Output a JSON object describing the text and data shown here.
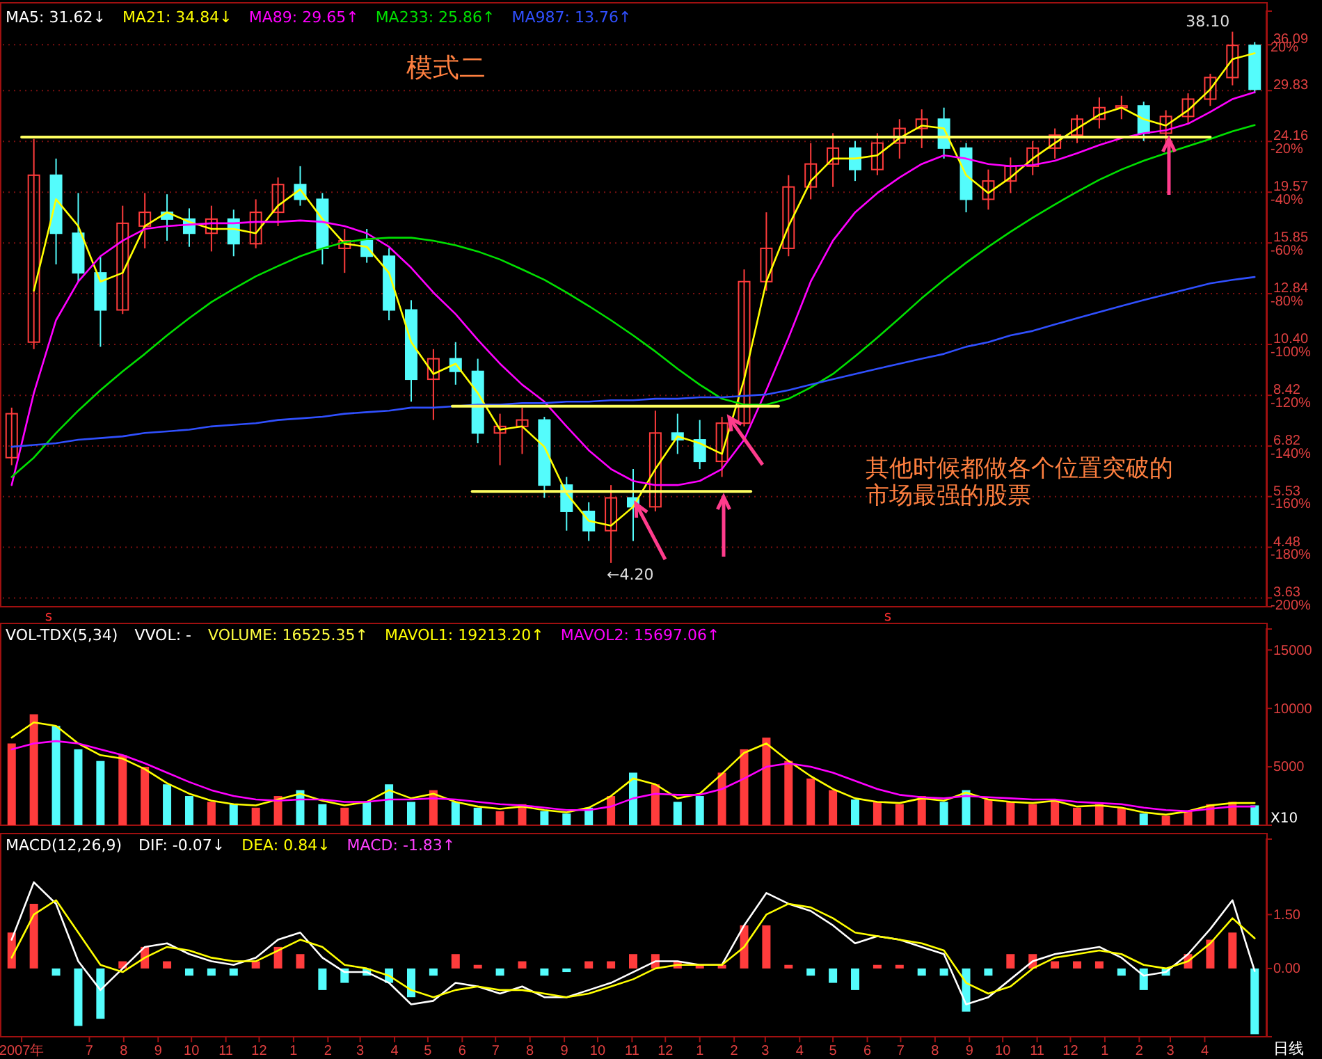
{
  "chart_data": [
    {
      "type": "candlestick",
      "x": [
        "2007-04-22",
        "2007-05-12",
        "2007-06-01",
        "2007-06-21",
        "2007-07-11",
        "2007-07-31",
        "2007-08-20",
        "2007-09-09",
        "2007-09-29",
        "2007-10-19",
        "2007-11-08",
        "2007-11-28",
        "2007-12-18",
        "2008-01-07",
        "2008-01-27",
        "2008-02-16",
        "2008-03-07",
        "2008-03-27",
        "2008-04-16",
        "2008-05-06",
        "2008-05-26",
        "2008-06-15",
        "2008-07-05",
        "2008-07-25",
        "2008-08-14",
        "2008-09-03",
        "2008-09-23",
        "2008-10-13",
        "2008-11-02",
        "2008-11-22",
        "2008-12-12",
        "2009-01-01",
        "2009-01-21",
        "2009-02-10",
        "2009-03-02",
        "2009-03-22",
        "2009-04-11",
        "2009-05-01",
        "2009-05-21",
        "2009-06-10",
        "2009-06-30",
        "2009-07-20",
        "2009-08-09",
        "2009-08-29",
        "2009-09-18",
        "2009-10-08",
        "2009-10-28",
        "2009-11-17",
        "2009-12-07",
        "2009-12-27",
        "2010-01-16",
        "2010-02-05",
        "2010-02-25",
        "2010-03-17",
        "2010-04-06",
        "2010-04-26",
        "2010-05-16"
      ],
      "ohlc": [
        [
          6.5,
          8.0,
          6.3,
          7.8
        ],
        [
          10.5,
          24.4,
          10.2,
          21.0
        ],
        [
          21,
          22.5,
          14.5,
          16.5
        ],
        [
          16.5,
          19.5,
          13.5,
          14.0
        ],
        [
          14,
          15,
          10.3,
          12.0
        ],
        [
          12,
          18.5,
          11.8,
          17.2
        ],
        [
          17,
          19.5,
          15.5,
          18.0
        ],
        [
          18,
          19.4,
          16,
          17.5
        ],
        [
          17.5,
          18.3,
          15.6,
          16.5
        ],
        [
          16.5,
          18.5,
          15.3,
          17.5
        ],
        [
          17.5,
          18.2,
          15,
          15.8
        ],
        [
          15.8,
          19,
          15.5,
          18.0
        ],
        [
          18,
          20.8,
          17,
          20.2
        ],
        [
          20.2,
          21.8,
          18.5,
          19.0
        ],
        [
          19,
          19.5,
          14.5,
          15.5
        ],
        [
          15.5,
          16.8,
          14.0,
          16.0
        ],
        [
          16,
          16.8,
          14.6,
          15.0
        ],
        [
          15,
          15.5,
          11.5,
          12.0
        ],
        [
          12,
          12.5,
          8.2,
          9.0
        ],
        [
          9,
          10.2,
          7.6,
          9.8
        ],
        [
          9.8,
          10.5,
          8.8,
          9.3
        ],
        [
          9.3,
          9.8,
          6.9,
          7.2
        ],
        [
          7.2,
          7.8,
          6.3,
          7.4
        ],
        [
          7.4,
          8.0,
          6.6,
          7.6
        ],
        [
          7.6,
          7.7,
          5.5,
          5.8
        ],
        [
          5.8,
          6.0,
          4.8,
          5.2
        ],
        [
          5.2,
          5.4,
          4.6,
          4.8
        ],
        [
          4.8,
          5.8,
          4.2,
          5.5
        ],
        [
          5.5,
          6.2,
          4.6,
          5.3
        ],
        [
          5.3,
          7.9,
          5.2,
          7.2
        ],
        [
          7.2,
          7.8,
          6.6,
          7.0
        ],
        [
          7.0,
          7.6,
          6.2,
          6.4
        ],
        [
          6.4,
          7.7,
          6.0,
          7.5
        ],
        [
          7.5,
          14.2,
          7.4,
          13.5
        ],
        [
          13.5,
          18.0,
          13.0,
          15.5
        ],
        [
          15.5,
          21,
          15,
          20.0
        ],
        [
          20,
          24,
          19,
          22.0
        ],
        [
          22,
          25,
          20,
          23.5
        ],
        [
          23.5,
          24.2,
          20.5,
          21.5
        ],
        [
          21.5,
          25,
          21,
          24.0
        ],
        [
          24,
          26.5,
          22.5,
          25.5
        ],
        [
          25.5,
          27.6,
          23.5,
          26.5
        ],
        [
          26.5,
          27.8,
          22.5,
          23.5
        ],
        [
          23.5,
          24,
          18.0,
          19.0
        ],
        [
          19,
          21.5,
          18.2,
          20.5
        ],
        [
          20.5,
          22.6,
          19.5,
          21.8
        ],
        [
          21.8,
          24.2,
          21,
          23.5
        ],
        [
          23.5,
          25.5,
          22.5,
          24.8
        ],
        [
          24.8,
          27,
          24,
          26.5
        ],
        [
          26.5,
          29,
          25.5,
          27.8
        ],
        [
          27.8,
          29.2,
          26.5,
          28.0
        ],
        [
          28,
          28.5,
          24.2,
          25.0
        ],
        [
          25,
          27.5,
          24,
          26.8
        ],
        [
          26.8,
          29.5,
          26,
          28.8
        ],
        [
          28.8,
          32,
          28,
          31.5
        ],
        [
          31.5,
          38.1,
          30.5,
          36.0
        ],
        [
          36,
          36.5,
          29.5,
          30.0
        ]
      ],
      "colors": [
        "#ff3c3c",
        "#ff3c3c",
        "#54fcfc",
        "#54fcfc",
        "#54fcfc",
        "#ff3c3c",
        "#ff3c3c",
        "#54fcfc",
        "#54fcfc",
        "#ff3c3c",
        "#54fcfc",
        "#ff3c3c",
        "#ff3c3c",
        "#54fcfc",
        "#54fcfc",
        "#ff3c3c",
        "#54fcfc",
        "#54fcfc",
        "#54fcfc",
        "#ff3c3c",
        "#54fcfc",
        "#54fcfc",
        "#ff3c3c",
        "#ff3c3c",
        "#54fcfc",
        "#54fcfc",
        "#54fcfc",
        "#ff3c3c",
        "#54fcfc",
        "#ff3c3c",
        "#54fcfc",
        "#54fcfc",
        "#ff3c3c",
        "#ff3c3c",
        "#ff3c3c",
        "#ff3c3c",
        "#ff3c3c",
        "#ff3c3c",
        "#54fcfc",
        "#ff3c3c",
        "#ff3c3c",
        "#ff3c3c",
        "#54fcfc",
        "#54fcfc",
        "#ff3c3c",
        "#ff3c3c",
        "#ff3c3c",
        "#ff3c3c",
        "#ff3c3c",
        "#ff3c3c",
        "#ff3c3c",
        "#54fcfc",
        "#ff3c3c",
        "#ff3c3c",
        "#ff3c3c",
        "#ff3c3c",
        "#54fcfc"
      ],
      "series": [
        {
          "name": "MA21: 34.84↓",
          "type": "line",
          "color": "#ffff00",
          "values": [
            null,
            13,
            19,
            17,
            13.5,
            14,
            17,
            18,
            17.3,
            16.8,
            16.8,
            16.5,
            18.5,
            19.8,
            17.5,
            15.8,
            15.6,
            14,
            10.5,
            9.2,
            9.6,
            8.5,
            7.3,
            7.4,
            6.8,
            5.6,
            5.0,
            4.9,
            5.3,
            6.2,
            7.1,
            6.9,
            6.6,
            9.0,
            13.5,
            17.0,
            20.5,
            22.5,
            22.5,
            22.8,
            24.5,
            25.8,
            25.5,
            21.0,
            19.5,
            20.8,
            22.5,
            24.0,
            25.5,
            27.0,
            27.8,
            26.5,
            25.8,
            27.5,
            30.0,
            34.0,
            34.84
          ]
        },
        {
          "name": "MA89: 29.65↑",
          "type": "line",
          "color": "#ff00ff",
          "values": [
            5.8,
            8.5,
            11.5,
            13.5,
            15.0,
            16.0,
            16.8,
            17.0,
            17.1,
            17.2,
            17.2,
            17.3,
            17.3,
            17.4,
            17.3,
            17.0,
            16.5,
            15.6,
            14.3,
            12.9,
            11.8,
            10.6,
            9.6,
            8.8,
            8.2,
            7.4,
            6.7,
            6.2,
            5.9,
            5.8,
            5.8,
            5.9,
            6.2,
            7.0,
            8.6,
            10.7,
            13.5,
            16.0,
            18.0,
            19.5,
            20.8,
            22.0,
            22.8,
            22.5,
            22.0,
            21.8,
            21.9,
            22.3,
            23.0,
            23.8,
            24.5,
            25.0,
            25.3,
            26.0,
            27.3,
            28.8,
            29.65
          ]
        },
        {
          "name": "MA233: 25.86↑",
          "type": "line",
          "color": "#00e000",
          "values": [
            6.0,
            6.5,
            7.2,
            7.9,
            8.6,
            9.3,
            10.0,
            10.8,
            11.6,
            12.4,
            13.1,
            13.8,
            14.4,
            15.0,
            15.5,
            15.9,
            16.1,
            16.2,
            16.2,
            16.0,
            15.7,
            15.3,
            14.8,
            14.2,
            13.6,
            12.9,
            12.2,
            11.5,
            10.8,
            10.1,
            9.4,
            8.8,
            8.3,
            8.1,
            8.1,
            8.3,
            8.7,
            9.2,
            9.9,
            10.7,
            11.6,
            12.6,
            13.6,
            14.6,
            15.6,
            16.6,
            17.6,
            18.6,
            19.6,
            20.6,
            21.5,
            22.3,
            23.0,
            23.7,
            24.4,
            25.2,
            25.86
          ]
        },
        {
          "name": "MA987: 13.76↑",
          "type": "line",
          "color": "#3050ff",
          "values": [
            6.8,
            6.85,
            6.9,
            7.0,
            7.05,
            7.1,
            7.2,
            7.25,
            7.3,
            7.4,
            7.45,
            7.5,
            7.6,
            7.65,
            7.7,
            7.8,
            7.85,
            7.9,
            8.0,
            8.0,
            8.05,
            8.1,
            8.1,
            8.15,
            8.15,
            8.2,
            8.2,
            8.25,
            8.25,
            8.3,
            8.3,
            8.35,
            8.35,
            8.4,
            8.45,
            8.6,
            8.8,
            9.0,
            9.2,
            9.4,
            9.6,
            9.8,
            10.0,
            10.3,
            10.5,
            10.8,
            11.0,
            11.3,
            11.6,
            11.9,
            12.2,
            12.5,
            12.8,
            13.1,
            13.4,
            13.6,
            13.76
          ]
        },
        {
          "type": "line",
          "color": "#ffff60",
          "x": [
            "2007-05-01",
            "2010-04-06"
          ],
          "values": [
            24.6,
            24.6
          ]
        },
        {
          "type": "line",
          "color": "#ffff60",
          "x": [
            "2008-05-23",
            "2009-03-13"
          ],
          "values": [
            8.05,
            8.05
          ]
        },
        {
          "type": "line",
          "color": "#ffff60",
          "x": [
            "2008-06-10",
            "2009-02-16"
          ],
          "values": [
            5.65,
            5.65
          ]
        }
      ],
      "log": true,
      "ylim": [
        3.5,
        41.5
      ],
      "yticks": [
        36.09,
        29.83,
        24.16,
        19.57,
        15.85,
        12.84,
        {
          "value": 10.4,
          "label": "10.40"
        },
        8.42,
        6.82,
        5.53,
        4.48,
        3.63
      ],
      "y2lim": [
        -203.5,
        31.3
      ],
      "y2ticks": [
        {
          "value": 20,
          "label": "20%"
        },
        {
          "value": -20,
          "label": "-20%"
        },
        {
          "value": -40,
          "label": "-40%"
        },
        {
          "value": -60,
          "label": "-60%"
        },
        {
          "value": -80,
          "label": "-80%"
        },
        {
          "value": -100,
          "label": "-100%"
        },
        {
          "value": -120,
          "label": "-120%"
        },
        {
          "value": -140,
          "label": "-140%"
        },
        {
          "value": -160,
          "label": "-160%"
        },
        {
          "value": -180,
          "label": "-180%"
        },
        {
          "value": -200,
          "label": "-200%"
        }
      ],
      "xlim": [
        "2007-04-14",
        "2010-05-24"
      ],
      "tick_labels": "y",
      "grid": "y",
      "legend": "top left",
      "annotations": [
        "MA5: 31.62↓",
        "模式二",
        "其他时候都做各个位置突破的市场最强的股票",
        {
          "text": "←4.20",
          "x": "2008-10-13",
          "y": 4.2
        },
        {
          "text": "38.10",
          "x": "2010-04-26",
          "y": 38.1
        },
        "s",
        "s"
      ]
    },
    {
      "type": "bar",
      "x": [
        "2007-04-22",
        "2007-05-12",
        "2007-06-01",
        "2007-06-21",
        "2007-07-11",
        "2007-07-31",
        "2007-08-20",
        "2007-09-09",
        "2007-09-29",
        "2007-10-19",
        "2007-11-08",
        "2007-11-28",
        "2007-12-18",
        "2008-01-07",
        "2008-01-27",
        "2008-02-16",
        "2008-03-07",
        "2008-03-27",
        "2008-04-16",
        "2008-05-06",
        "2008-05-26",
        "2008-06-15",
        "2008-07-05",
        "2008-07-25",
        "2008-08-14",
        "2008-09-03",
        "2008-09-23",
        "2008-10-13",
        "2008-11-02",
        "2008-11-22",
        "2008-12-12",
        "2009-01-01",
        "2009-01-21",
        "2009-02-10",
        "2009-03-02",
        "2009-03-22",
        "2009-04-11",
        "2009-05-01",
        "2009-05-21",
        "2009-06-10",
        "2009-06-30",
        "2009-07-20",
        "2009-08-09",
        "2009-08-29",
        "2009-09-18",
        "2009-10-08",
        "2009-10-28",
        "2009-11-17",
        "2009-12-07",
        "2009-12-27",
        "2010-01-16",
        "2010-02-05",
        "2010-02-25",
        "2010-03-17",
        "2010-04-06",
        "2010-04-26",
        "2010-05-16"
      ],
      "series": [
        {
          "type": "bar",
          "colors": [
            "#ff3c3c",
            "#ff3c3c",
            "#54fcfc",
            "#54fcfc",
            "#54fcfc",
            "#ff3c3c",
            "#ff3c3c",
            "#54fcfc",
            "#54fcfc",
            "#ff3c3c",
            "#54fcfc",
            "#ff3c3c",
            "#ff3c3c",
            "#54fcfc",
            "#54fcfc",
            "#ff3c3c",
            "#54fcfc",
            "#54fcfc",
            "#54fcfc",
            "#ff3c3c",
            "#54fcfc",
            "#54fcfc",
            "#ff3c3c",
            "#ff3c3c",
            "#54fcfc",
            "#54fcfc",
            "#54fcfc",
            "#ff3c3c",
            "#54fcfc",
            "#ff3c3c",
            "#54fcfc",
            "#54fcfc",
            "#ff3c3c",
            "#ff3c3c",
            "#ff3c3c",
            "#ff3c3c",
            "#ff3c3c",
            "#ff3c3c",
            "#54fcfc",
            "#ff3c3c",
            "#ff3c3c",
            "#ff3c3c",
            "#54fcfc",
            "#54fcfc",
            "#ff3c3c",
            "#ff3c3c",
            "#ff3c3c",
            "#ff3c3c",
            "#ff3c3c",
            "#ff3c3c",
            "#ff3c3c",
            "#54fcfc",
            "#ff3c3c",
            "#ff3c3c",
            "#ff3c3c",
            "#ff3c3c",
            "#54fcfc"
          ],
          "values": [
            7000,
            9500,
            8500,
            6500,
            5500,
            6000,
            5000,
            3500,
            2500,
            2000,
            1800,
            1500,
            2500,
            3000,
            1800,
            1500,
            2000,
            3500,
            2000,
            3000,
            2000,
            1500,
            1200,
            1800,
            1200,
            1000,
            1500,
            2500,
            4500,
            3500,
            2000,
            2500,
            4500,
            6500,
            7500,
            5500,
            4000,
            3000,
            2200,
            2000,
            1800,
            2500,
            2000,
            3000,
            2200,
            2000,
            1800,
            2200,
            1500,
            1800,
            1500,
            1000,
            800,
            1200,
            1800,
            2000,
            1700
          ]
        },
        {
          "name": "MAVOL1: 19213.20↑",
          "type": "line",
          "color": "#ffff00",
          "values": [
            7500,
            8800,
            8500,
            7000,
            6000,
            5700,
            4800,
            3600,
            2700,
            2100,
            1800,
            1700,
            2200,
            2700,
            2100,
            1700,
            2000,
            3000,
            2300,
            2700,
            2000,
            1600,
            1400,
            1600,
            1300,
            1100,
            1500,
            2500,
            4000,
            3500,
            2300,
            2700,
            4400,
            6200,
            7000,
            5500,
            4200,
            3100,
            2300,
            2000,
            1900,
            2300,
            2100,
            2800,
            2200,
            2000,
            1900,
            2100,
            1600,
            1700,
            1500,
            1100,
            900,
            1200,
            1700,
            1900,
            1900
          ]
        },
        {
          "name": "MAVOL2: 15697.06↑",
          "type": "line",
          "color": "#ff00ff",
          "values": [
            6500,
            7000,
            7200,
            7000,
            6500,
            6000,
            5300,
            4500,
            3700,
            3000,
            2500,
            2200,
            2100,
            2200,
            2200,
            2000,
            2000,
            2200,
            2200,
            2300,
            2200,
            2000,
            1800,
            1700,
            1500,
            1300,
            1300,
            1600,
            2300,
            2700,
            2600,
            2600,
            3100,
            4000,
            5000,
            5300,
            5000,
            4500,
            3800,
            3100,
            2600,
            2400,
            2300,
            2500,
            2400,
            2300,
            2200,
            2200,
            2000,
            1900,
            1800,
            1500,
            1300,
            1200,
            1400,
            1600,
            1600
          ]
        }
      ],
      "ylim": [
        0,
        16800
      ],
      "yticks": [
        5000,
        10000,
        15000
      ],
      "xlim": [
        "2007-04-14",
        "2010-05-24"
      ],
      "tick_labels": "y",
      "legend": "top left",
      "annotations": [
        "VOL-TDX(5,34)",
        "VVOL: -",
        "VOLUME: 16525.35↑",
        "X10"
      ]
    },
    {
      "type": "bar",
      "x": [
        "2007-04-22",
        "2007-05-12",
        "2007-06-01",
        "2007-06-21",
        "2007-07-11",
        "2007-07-31",
        "2007-08-20",
        "2007-09-09",
        "2007-09-29",
        "2007-10-19",
        "2007-11-08",
        "2007-11-28",
        "2007-12-18",
        "2008-01-07",
        "2008-01-27",
        "2008-02-16",
        "2008-03-07",
        "2008-03-27",
        "2008-04-16",
        "2008-05-06",
        "2008-05-26",
        "2008-06-15",
        "2008-07-05",
        "2008-07-25",
        "2008-08-14",
        "2008-09-03",
        "2008-09-23",
        "2008-10-13",
        "2008-11-02",
        "2008-11-22",
        "2008-12-12",
        "2009-01-01",
        "2009-01-21",
        "2009-02-10",
        "2009-03-02",
        "2009-03-22",
        "2009-04-11",
        "2009-05-01",
        "2009-05-21",
        "2009-06-10",
        "2009-06-30",
        "2009-07-20",
        "2009-08-09",
        "2009-08-29",
        "2009-09-18",
        "2009-10-08",
        "2009-10-28",
        "2009-11-17",
        "2009-12-07",
        "2009-12-27",
        "2010-01-16",
        "2010-02-05",
        "2010-02-25",
        "2010-03-17",
        "2010-04-06",
        "2010-04-26",
        "2010-05-16"
      ],
      "series": [
        {
          "type": "bar",
          "colors": [
            "#ff3c3c",
            "#ff3c3c",
            "#54fcfc",
            "#54fcfc",
            "#54fcfc",
            "#ff3c3c",
            "#ff3c3c",
            "#ff3c3c",
            "#54fcfc",
            "#54fcfc",
            "#54fcfc",
            "#ff3c3c",
            "#ff3c3c",
            "#ff3c3c",
            "#54fcfc",
            "#54fcfc",
            "#54fcfc",
            "#54fcfc",
            "#54fcfc",
            "#54fcfc",
            "#ff3c3c",
            "#ff3c3c",
            "#54fcfc",
            "#ff3c3c",
            "#54fcfc",
            "#54fcfc",
            "#ff3c3c",
            "#ff3c3c",
            "#ff3c3c",
            "#ff3c3c",
            "#ff3c3c",
            "#ff3c3c",
            "#ff3c3c",
            "#ff3c3c",
            "#ff3c3c",
            "#ff3c3c",
            "#54fcfc",
            "#54fcfc",
            "#54fcfc",
            "#ff3c3c",
            "#ff3c3c",
            "#54fcfc",
            "#54fcfc",
            "#54fcfc",
            "#54fcfc",
            "#ff3c3c",
            "#ff3c3c",
            "#ff3c3c",
            "#ff3c3c",
            "#ff3c3c",
            "#54fcfc",
            "#54fcfc",
            "#54fcfc",
            "#ff3c3c",
            "#ff3c3c",
            "#ff3c3c",
            "#54fcfc"
          ],
          "values": [
            1.0,
            1.8,
            -0.2,
            -1.6,
            -1.4,
            0.2,
            0.6,
            0.2,
            -0.2,
            -0.2,
            -0.2,
            0.2,
            0.6,
            0.4,
            -0.6,
            -0.4,
            -0.2,
            -0.4,
            -0.8,
            -0.2,
            0.4,
            0.1,
            -0.2,
            0.2,
            -0.2,
            -0.1,
            0.2,
            0.2,
            0.4,
            0.4,
            0.2,
            0.1,
            0.1,
            1.2,
            1.2,
            0.1,
            -0.2,
            -0.4,
            -0.6,
            0.1,
            0.1,
            -0.2,
            -0.2,
            -1.2,
            -0.2,
            0.4,
            0.4,
            0.2,
            0.2,
            0.2,
            -0.2,
            -0.6,
            -0.2,
            0.4,
            0.8,
            1.0,
            -1.83
          ]
        },
        {
          "name": "DIF: -0.07↓",
          "type": "line",
          "color": "#ffffff",
          "values": [
            0.8,
            2.4,
            1.8,
            0.2,
            -0.6,
            0.0,
            0.6,
            0.7,
            0.4,
            0.2,
            0.1,
            0.3,
            0.8,
            1.0,
            0.3,
            -0.1,
            -0.1,
            -0.4,
            -1.0,
            -0.9,
            -0.4,
            -0.5,
            -0.7,
            -0.5,
            -0.8,
            -0.8,
            -0.6,
            -0.4,
            -0.1,
            0.2,
            0.2,
            0.1,
            0.1,
            1.2,
            2.1,
            1.8,
            1.6,
            1.2,
            0.7,
            0.9,
            0.8,
            0.6,
            0.4,
            -1.0,
            -0.8,
            -0.3,
            0.2,
            0.4,
            0.5,
            0.6,
            0.3,
            -0.2,
            -0.1,
            0.4,
            1.1,
            1.9,
            -0.07
          ]
        },
        {
          "name": "DEA: 0.84↓",
          "type": "line",
          "color": "#ffff00",
          "values": [
            0.3,
            1.5,
            1.9,
            1.0,
            0.1,
            -0.1,
            0.3,
            0.6,
            0.5,
            0.3,
            0.2,
            0.2,
            0.5,
            0.8,
            0.6,
            0.1,
            0.0,
            -0.2,
            -0.6,
            -0.8,
            -0.6,
            -0.5,
            -0.6,
            -0.6,
            -0.7,
            -0.8,
            -0.7,
            -0.5,
            -0.3,
            0.0,
            0.1,
            0.1,
            0.1,
            0.6,
            1.5,
            1.8,
            1.7,
            1.4,
            1.0,
            0.9,
            0.8,
            0.7,
            0.5,
            -0.4,
            -0.7,
            -0.5,
            0.0,
            0.3,
            0.4,
            0.5,
            0.4,
            0.1,
            0.0,
            0.2,
            0.7,
            1.4,
            0.84
          ]
        }
      ],
      "ylim": [
        -1.9,
        3.6
      ],
      "yticks": [
        {
          "value": 0,
          "label": "0.00"
        },
        {
          "value": 1.5,
          "label": "1.50"
        }
      ],
      "xlim": [
        "2007-04-14",
        "2010-05-24"
      ],
      "xticks": [
        {
          "value": "2007-05-01",
          "label": "2007年"
        },
        {
          "value": "2007-07-01",
          "label": "7"
        },
        {
          "value": "2007-08-01",
          "label": "8"
        },
        {
          "value": "2007-09-01",
          "label": "9"
        },
        {
          "value": "2007-10-01",
          "label": "10"
        },
        {
          "value": "2007-11-01",
          "label": "11"
        },
        {
          "value": "2007-12-01",
          "label": "12"
        },
        {
          "value": "2008-01-01",
          "label": "1"
        },
        {
          "value": "2008-02-01",
          "label": "2"
        },
        {
          "value": "2008-03-01",
          "label": "3"
        },
        {
          "value": "2008-04-01",
          "label": "4"
        },
        {
          "value": "2008-05-01",
          "label": "5"
        },
        {
          "value": "2008-06-01",
          "label": "6"
        },
        {
          "value": "2008-07-01",
          "label": "7"
        },
        {
          "value": "2008-08-01",
          "label": "8"
        },
        {
          "value": "2008-09-01",
          "label": "9"
        },
        {
          "value": "2008-10-01",
          "label": "10"
        },
        {
          "value": "2008-11-01",
          "label": "11"
        },
        {
          "value": "2008-12-01",
          "label": "12"
        },
        {
          "value": "2009-01-01",
          "label": "1"
        },
        {
          "value": "2009-02-01",
          "label": "2"
        },
        {
          "value": "2009-03-01",
          "label": "3"
        },
        {
          "value": "2009-04-01",
          "label": "4"
        },
        {
          "value": "2009-05-01",
          "label": "5"
        },
        {
          "value": "2009-06-01",
          "label": "6"
        },
        {
          "value": "2009-07-01",
          "label": "7"
        },
        {
          "value": "2009-08-01",
          "label": "8"
        },
        {
          "value": "2009-09-01",
          "label": "9"
        },
        {
          "value": "2009-10-01",
          "label": "10"
        },
        {
          "value": "2009-11-01",
          "label": "11"
        },
        {
          "value": "2009-12-01",
          "label": "12"
        },
        {
          "value": "2010-01-01",
          "label": "1"
        },
        {
          "value": "2010-02-01",
          "label": "2"
        },
        {
          "value": "2010-03-01",
          "label": "3"
        },
        {
          "value": "2010-04-01",
          "label": "4"
        }
      ],
      "legend": "top left",
      "annotations": [
        "MACD(12,26,9)",
        "MACD: -1.83↑",
        "日线"
      ]
    }
  ]
}
